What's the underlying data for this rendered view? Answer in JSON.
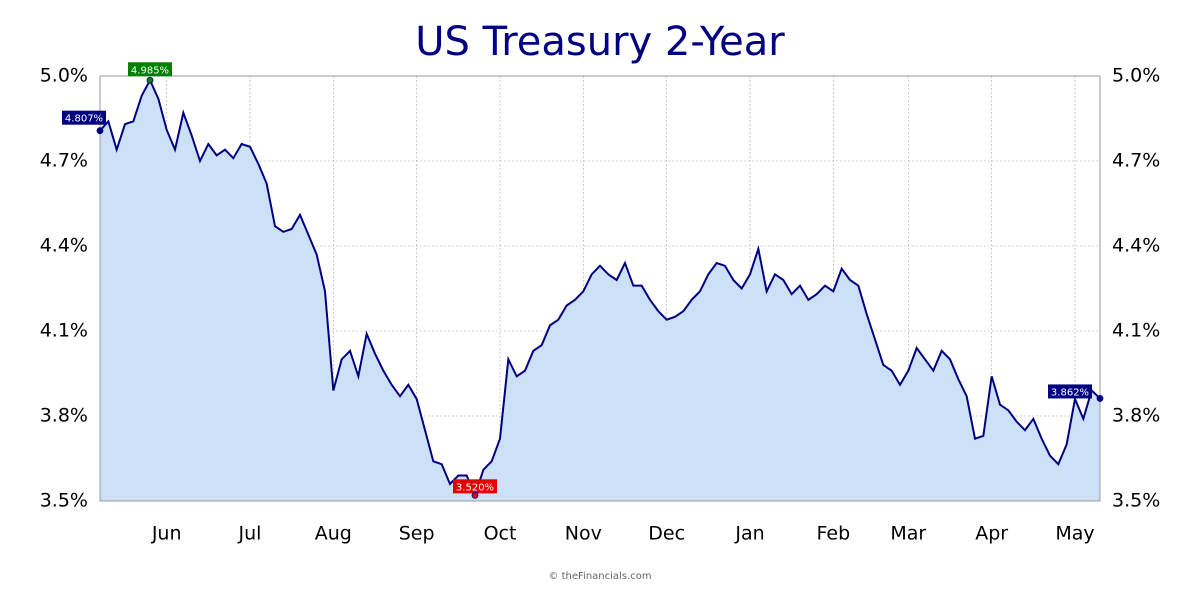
{
  "chart_data": {
    "type": "area",
    "title": "US Treasury 2-Year",
    "footer": "© theFinancials.com",
    "categories": [
      null,
      null,
      null,
      null,
      null,
      null,
      null,
      null,
      "Jun",
      null,
      null,
      null,
      null,
      null,
      null,
      null,
      null,
      null,
      "Jul",
      null,
      null,
      null,
      null,
      null,
      null,
      null,
      null,
      null,
      "Aug",
      null,
      null,
      null,
      null,
      null,
      null,
      null,
      null,
      null,
      "Sep",
      null,
      null,
      null,
      null,
      null,
      null,
      null,
      null,
      null,
      "Oct",
      null,
      null,
      null,
      null,
      null,
      null,
      null,
      null,
      null,
      "Nov",
      null,
      null,
      null,
      null,
      null,
      null,
      null,
      null,
      null,
      "Dec",
      null,
      null,
      null,
      null,
      null,
      null,
      null,
      null,
      null,
      "Jan",
      null,
      null,
      null,
      null,
      null,
      null,
      null,
      null,
      null,
      "Feb",
      null,
      null,
      null,
      null,
      null,
      null,
      null,
      null,
      "Mar",
      null,
      null,
      null,
      null,
      null,
      null,
      null,
      null,
      null,
      "Apr",
      null,
      null,
      null,
      null,
      null,
      null,
      null,
      null,
      null,
      "May",
      null,
      null,
      null
    ],
    "values": [
      4.807,
      4.84,
      4.74,
      4.83,
      4.84,
      4.93,
      4.985,
      4.92,
      4.81,
      4.74,
      4.87,
      4.79,
      4.7,
      4.76,
      4.72,
      4.74,
      4.71,
      4.76,
      4.75,
      4.69,
      4.62,
      4.47,
      4.45,
      4.46,
      4.51,
      4.44,
      4.37,
      4.24,
      3.89,
      4.0,
      4.03,
      3.94,
      4.09,
      4.02,
      3.96,
      3.91,
      3.87,
      3.91,
      3.86,
      3.75,
      3.64,
      3.63,
      3.56,
      3.59,
      3.59,
      3.52,
      3.61,
      3.64,
      3.72,
      4.0,
      3.94,
      3.96,
      4.03,
      4.05,
      4.12,
      4.14,
      4.19,
      4.21,
      4.24,
      4.3,
      4.33,
      4.3,
      4.28,
      4.34,
      4.26,
      4.26,
      4.21,
      4.17,
      4.14,
      4.15,
      4.17,
      4.21,
      4.24,
      4.3,
      4.34,
      4.33,
      4.28,
      4.25,
      4.3,
      4.39,
      4.24,
      4.3,
      4.28,
      4.23,
      4.26,
      4.21,
      4.23,
      4.26,
      4.24,
      4.32,
      4.28,
      4.26,
      4.16,
      4.07,
      3.98,
      3.96,
      3.91,
      3.96,
      4.04,
      4.0,
      3.96,
      4.03,
      4.0,
      3.93,
      3.87,
      3.72,
      3.73,
      3.94,
      3.84,
      3.82,
      3.78,
      3.75,
      3.79,
      3.72,
      3.66,
      3.63,
      3.7,
      3.86,
      3.79,
      3.89,
      3.862
    ],
    "value_labels": [
      "4.807%",
      null,
      null,
      null,
      null,
      null,
      "4.985%",
      null,
      null,
      null,
      null,
      null,
      null,
      null,
      null,
      null,
      null,
      null,
      null,
      null,
      null,
      null,
      null,
      null,
      null,
      null,
      null,
      null,
      null,
      null,
      null,
      null,
      null,
      null,
      null,
      null,
      null,
      null,
      null,
      null,
      null,
      null,
      null,
      null,
      null,
      "3.520%",
      null,
      null,
      null,
      null,
      null,
      null,
      null,
      null,
      null,
      null,
      null,
      null,
      null,
      null,
      null,
      null,
      null,
      null,
      null,
      null,
      null,
      null,
      null,
      null,
      null,
      null,
      null,
      null,
      null,
      null,
      null,
      null,
      null,
      null,
      null,
      null,
      null,
      null,
      null,
      null,
      null,
      null,
      null,
      null,
      null,
      null,
      null,
      null,
      null,
      null,
      null,
      null,
      null,
      null,
      null,
      null,
      null,
      null,
      null,
      null,
      null,
      null,
      null,
      null,
      null,
      null,
      null,
      null,
      null,
      null,
      null,
      null,
      null,
      null,
      "3.862%"
    ],
    "color": "#000080",
    "fill": "#cce0f8",
    "ylim": [
      3.5,
      5.0
    ],
    "yticks": [
      {
        "value": 3.5,
        "label": "3.5%"
      },
      {
        "value": 3.8,
        "label": "3.8%"
      },
      {
        "value": 4.1,
        "label": "4.1%"
      },
      {
        "value": 4.4,
        "label": "4.4%"
      },
      {
        "value": 4.7,
        "label": "4.7%"
      },
      {
        "value": 5.0,
        "label": "5.0%"
      }
    ],
    "grid": true
  }
}
